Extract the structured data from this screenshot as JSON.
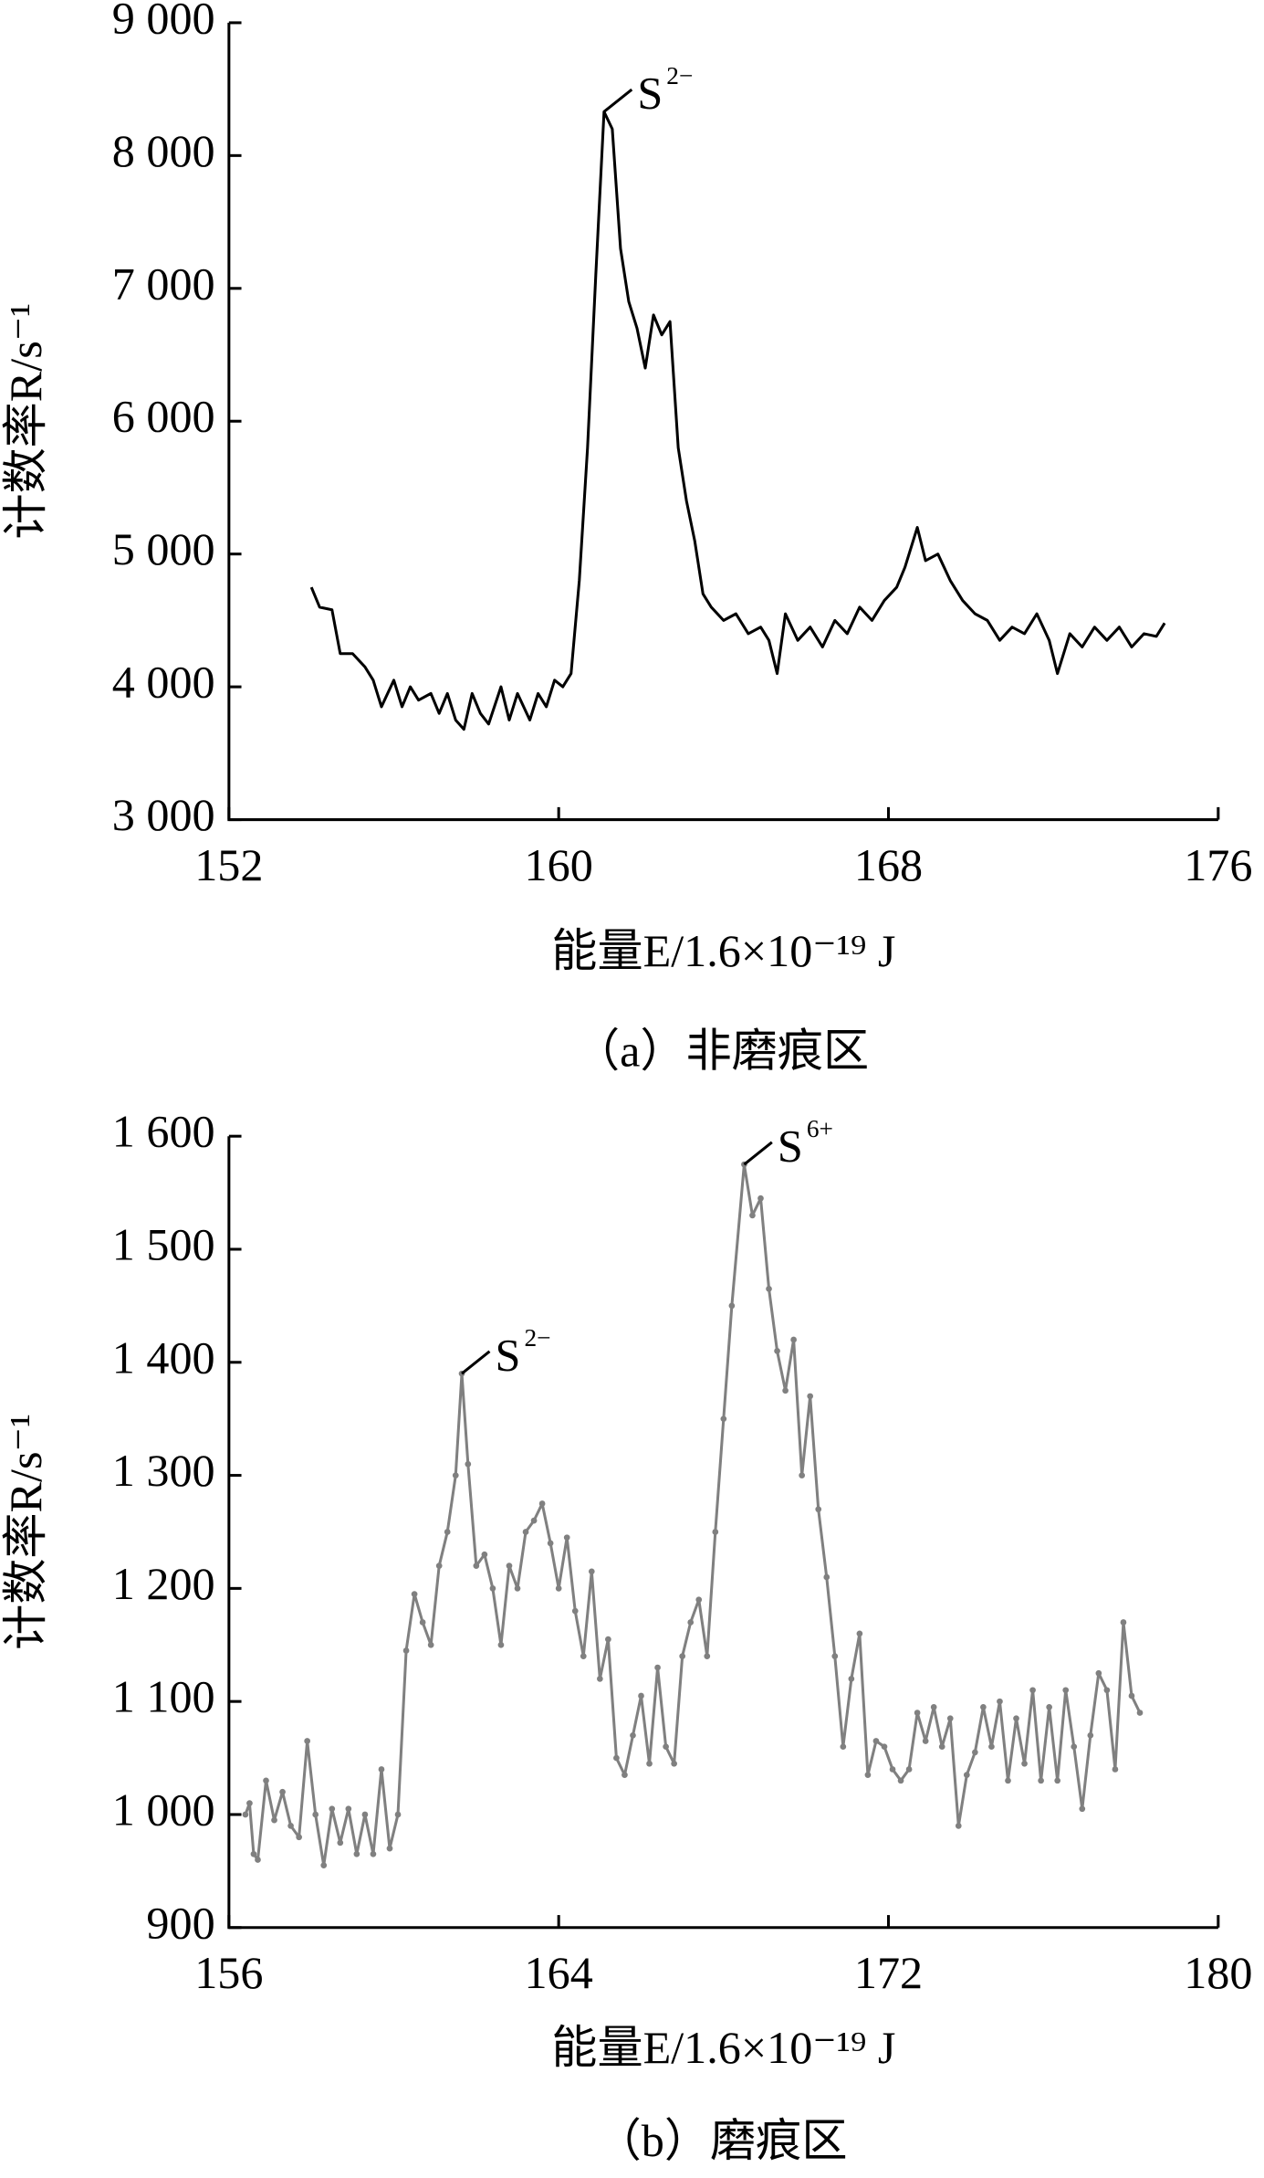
{
  "chart_data": [
    {
      "type": "line",
      "color": "#000000",
      "markers": false,
      "xlabel": "能量E/1.6×10⁻¹⁹ J",
      "ylabel": "计数率R/s⁻¹",
      "caption": "（a）非磨痕区",
      "xlim": [
        152,
        176
      ],
      "xticks": [
        152,
        160,
        168,
        176
      ],
      "ylim": [
        3000,
        9000
      ],
      "yticks": [
        {
          "value": 3000,
          "label": "3 000"
        },
        {
          "value": 4000,
          "label": "4 000"
        },
        {
          "value": 5000,
          "label": "5 000"
        },
        {
          "value": 6000,
          "label": "6 000"
        },
        {
          "value": 7000,
          "label": "7 000"
        },
        {
          "value": 8000,
          "label": "8 000"
        },
        {
          "value": 9000,
          "label": "9 000"
        }
      ],
      "annotations": [
        {
          "label": "S",
          "sup": "2−",
          "x": 161.1,
          "y": 8330
        }
      ],
      "x": [
        154.0,
        154.2,
        154.5,
        154.7,
        155.0,
        155.3,
        155.5,
        155.7,
        156.0,
        156.2,
        156.4,
        156.6,
        156.9,
        157.1,
        157.3,
        157.5,
        157.7,
        157.9,
        158.1,
        158.3,
        158.6,
        158.8,
        159.0,
        159.3,
        159.5,
        159.7,
        159.9,
        160.1,
        160.3,
        160.5,
        160.7,
        160.9,
        161.1,
        161.3,
        161.5,
        161.7,
        161.9,
        162.1,
        162.3,
        162.5,
        162.7,
        162.9,
        163.1,
        163.3,
        163.5,
        163.7,
        164.0,
        164.3,
        164.6,
        164.9,
        165.1,
        165.3,
        165.5,
        165.8,
        166.1,
        166.4,
        166.7,
        167.0,
        167.3,
        167.6,
        167.9,
        168.2,
        168.4,
        168.7,
        168.9,
        169.2,
        169.5,
        169.8,
        170.1,
        170.4,
        170.7,
        171.0,
        171.3,
        171.6,
        171.9,
        172.1,
        172.4,
        172.7,
        173.0,
        173.3,
        173.6,
        173.9,
        174.2,
        174.5,
        174.7
      ],
      "values": [
        4750,
        4600,
        4580,
        4250,
        4250,
        4150,
        4050,
        3850,
        4050,
        3850,
        4000,
        3900,
        3950,
        3800,
        3950,
        3750,
        3680,
        3950,
        3800,
        3720,
        4000,
        3750,
        3950,
        3750,
        3950,
        3850,
        4050,
        4000,
        4100,
        4800,
        5800,
        7100,
        8330,
        8200,
        7300,
        6900,
        6700,
        6400,
        6800,
        6650,
        6750,
        5800,
        5400,
        5100,
        4700,
        4600,
        4500,
        4550,
        4400,
        4450,
        4350,
        4100,
        4550,
        4350,
        4450,
        4300,
        4500,
        4400,
        4600,
        4500,
        4650,
        4750,
        4900,
        5200,
        4950,
        5000,
        4800,
        4650,
        4550,
        4500,
        4350,
        4450,
        4400,
        4550,
        4350,
        4100,
        4400,
        4300,
        4450,
        4350,
        4450,
        4300,
        4400,
        4380,
        4480
      ]
    },
    {
      "type": "line",
      "color": "#808080",
      "markers": true,
      "xlabel": "能量E/1.6×10⁻¹⁹ J",
      "ylabel": "计数率R/s⁻¹",
      "caption": "（b）磨痕区",
      "xlim": [
        156,
        180
      ],
      "xticks": [
        156,
        164,
        172,
        180
      ],
      "ylim": [
        900,
        1600
      ],
      "yticks": [
        900,
        {
          "value": 1000,
          "label": "1 000"
        },
        {
          "value": 1100,
          "label": "1 100"
        },
        {
          "value": 1200,
          "label": "1 200"
        },
        {
          "value": 1300,
          "label": "1 300"
        },
        {
          "value": 1400,
          "label": "1 400"
        },
        {
          "value": 1500,
          "label": "1 500"
        },
        {
          "value": 1600,
          "label": "1 600"
        }
      ],
      "annotations": [
        {
          "label": "S",
          "sup": "2−",
          "x": 161.65,
          "y": 1390
        },
        {
          "label": "S",
          "sup": "6+",
          "x": 168.5,
          "y": 1575
        }
      ],
      "x": [
        156.4,
        156.5,
        156.6,
        156.7,
        156.9,
        157.1,
        157.3,
        157.5,
        157.7,
        157.9,
        158.1,
        158.3,
        158.5,
        158.7,
        158.9,
        159.1,
        159.3,
        159.5,
        159.7,
        159.9,
        160.1,
        160.3,
        160.5,
        160.7,
        160.9,
        161.1,
        161.3,
        161.5,
        161.65,
        161.8,
        162.0,
        162.2,
        162.4,
        162.6,
        162.8,
        163.0,
        163.2,
        163.4,
        163.6,
        163.8,
        164.0,
        164.2,
        164.4,
        164.6,
        164.8,
        165.0,
        165.2,
        165.4,
        165.6,
        165.8,
        166.0,
        166.2,
        166.4,
        166.6,
        166.8,
        167.0,
        167.2,
        167.4,
        167.6,
        167.8,
        168.0,
        168.2,
        168.5,
        168.7,
        168.9,
        169.1,
        169.3,
        169.5,
        169.7,
        169.9,
        170.1,
        170.3,
        170.5,
        170.7,
        170.9,
        171.1,
        171.3,
        171.5,
        171.7,
        171.9,
        172.1,
        172.3,
        172.5,
        172.7,
        172.9,
        173.1,
        173.3,
        173.5,
        173.7,
        173.9,
        174.1,
        174.3,
        174.5,
        174.7,
        174.9,
        175.1,
        175.3,
        175.5,
        175.7,
        175.9,
        176.1,
        176.3,
        176.5,
        176.7,
        176.9,
        177.1,
        177.3,
        177.5,
        177.7,
        177.9,
        178.1
      ],
      "values": [
        1000,
        1010,
        965,
        960,
        1030,
        995,
        1020,
        990,
        980,
        1065,
        1000,
        955,
        1005,
        975,
        1005,
        965,
        1000,
        965,
        1040,
        970,
        1000,
        1145,
        1195,
        1170,
        1150,
        1220,
        1250,
        1300,
        1390,
        1310,
        1220,
        1230,
        1200,
        1150,
        1220,
        1200,
        1250,
        1260,
        1275,
        1240,
        1200,
        1245,
        1180,
        1140,
        1215,
        1120,
        1155,
        1050,
        1035,
        1070,
        1105,
        1045,
        1130,
        1060,
        1045,
        1140,
        1170,
        1190,
        1140,
        1250,
        1350,
        1450,
        1575,
        1530,
        1545,
        1465,
        1410,
        1375,
        1420,
        1300,
        1370,
        1270,
        1210,
        1140,
        1060,
        1120,
        1160,
        1035,
        1065,
        1060,
        1040,
        1030,
        1040,
        1090,
        1065,
        1095,
        1060,
        1085,
        990,
        1035,
        1055,
        1095,
        1060,
        1100,
        1030,
        1085,
        1045,
        1110,
        1030,
        1095,
        1030,
        1110,
        1060,
        1005,
        1070,
        1125,
        1110,
        1040,
        1170,
        1105,
        1090
      ]
    }
  ]
}
